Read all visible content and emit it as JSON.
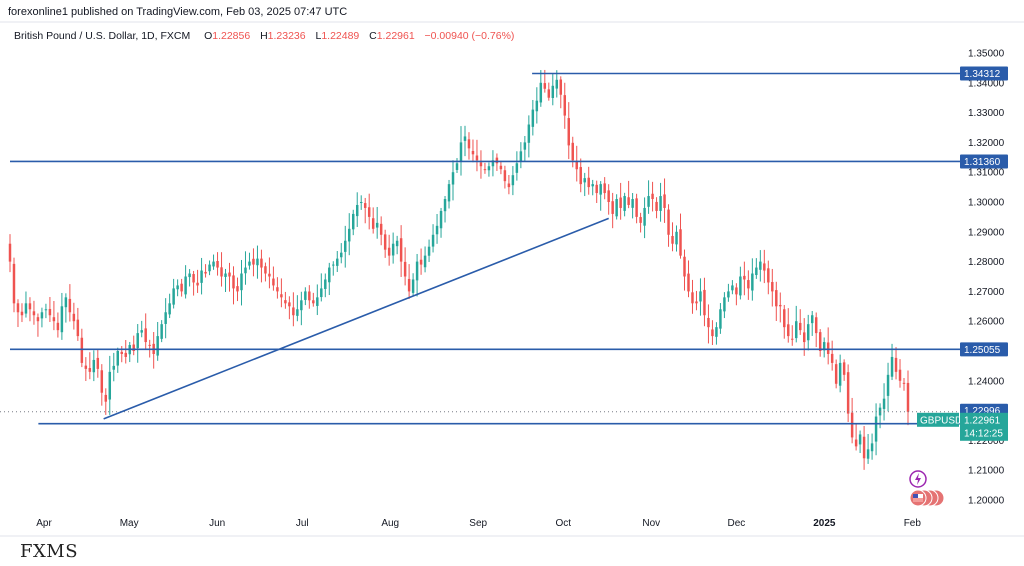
{
  "publisher_line": "forexonline1 published on TradingView.com, Feb 03, 2025 07:47 UTC",
  "symbol_header": {
    "title": "British Pound / U.S. Dollar, 1D, FXCM",
    "open_label": "O",
    "open": "1.22856",
    "high_label": "H",
    "high": "1.23236",
    "low_label": "L",
    "low": "1.22489",
    "close_label": "C",
    "close": "1.22961",
    "change": "−0.00940 (−0.76%)"
  },
  "watermark": "FXMS",
  "colors": {
    "up": "#26a69a",
    "down": "#ef5350",
    "level_line": "#2a5caa",
    "tag_bg": "#2a5caa",
    "last_price_bg": "#26a69a",
    "dotted_price": "#787b86"
  },
  "icons": [
    "lightning-icon",
    "us-flag-icon"
  ],
  "chart_data": {
    "type": "candlestick",
    "symbol": "GBPUSD",
    "interval": "1D",
    "x_ticks": [
      "Apr",
      "May",
      "Jun",
      "Jul",
      "Aug",
      "Sep",
      "Oct",
      "Nov",
      "Dec",
      "2025",
      "Feb"
    ],
    "y_ticks": [
      "1.35000",
      "1.34000",
      "1.33000",
      "1.32000",
      "1.31000",
      "1.30000",
      "1.29000",
      "1.28000",
      "1.27000",
      "1.26000",
      "1.25000",
      "1.24000",
      "1.23000",
      "1.22000",
      "1.21000",
      "1.20000"
    ],
    "ylim": [
      1.195,
      1.353
    ],
    "grid": false,
    "horizontal_levels": [
      {
        "value": 1.34312,
        "label": "1.34312",
        "start": "2024-09-20"
      },
      {
        "value": 1.3136,
        "label": "1.31360",
        "start": "2024-03-20"
      },
      {
        "value": 1.25055,
        "label": "1.25055",
        "start": "2024-03-20"
      },
      {
        "value": 1.22996,
        "label": "1.22996",
        "start": "2024-03-30"
      }
    ],
    "trendline": {
      "from": {
        "date": "2024-04-22",
        "price": 1.2299
      },
      "to": {
        "date": "2024-10-17",
        "price": 1.2945
      }
    },
    "last_price": {
      "symbol": "GBPUSD",
      "value": "1.22961",
      "countdown": "14:12:25"
    },
    "candles_close": [
      1.28,
      1.266,
      1.263,
      1.262,
      1.266,
      1.264,
      1.262,
      1.26,
      1.263,
      1.264,
      1.262,
      1.26,
      1.257,
      1.265,
      1.268,
      1.263,
      1.26,
      1.255,
      1.246,
      1.244,
      1.243,
      1.247,
      1.244,
      1.236,
      1.233,
      1.243,
      1.245,
      1.25,
      1.249,
      1.248,
      1.252,
      1.25,
      1.256,
      1.257,
      1.253,
      1.252,
      1.249,
      1.255,
      1.259,
      1.263,
      1.266,
      1.271,
      1.272,
      1.27,
      1.275,
      1.276,
      1.273,
      1.272,
      1.277,
      1.276,
      1.279,
      1.28,
      1.278,
      1.275,
      1.276,
      1.275,
      1.271,
      1.27,
      1.276,
      1.278,
      1.28,
      1.279,
      1.281,
      1.278,
      1.276,
      1.275,
      1.272,
      1.27,
      1.268,
      1.266,
      1.265,
      1.262,
      1.264,
      1.267,
      1.27,
      1.267,
      1.266,
      1.268,
      1.271,
      1.274,
      1.278,
      1.279,
      1.281,
      1.283,
      1.287,
      1.291,
      1.296,
      1.299,
      1.3,
      1.298,
      1.295,
      1.291,
      1.293,
      1.289,
      1.284,
      1.282,
      1.286,
      1.287,
      1.28,
      1.275,
      1.27,
      1.274,
      1.28,
      1.279,
      1.282,
      1.285,
      1.289,
      1.292,
      1.297,
      1.301,
      1.306,
      1.31,
      1.313,
      1.32,
      1.322,
      1.318,
      1.316,
      1.314,
      1.312,
      1.311,
      1.312,
      1.314,
      1.313,
      1.311,
      1.307,
      1.305,
      1.309,
      1.313,
      1.317,
      1.32,
      1.326,
      1.331,
      1.334,
      1.34,
      1.338,
      1.335,
      1.339,
      1.341,
      1.336,
      1.329,
      1.319,
      1.314,
      1.311,
      1.306,
      1.308,
      1.305,
      1.306,
      1.303,
      1.306,
      1.303,
      1.3,
      1.296,
      1.301,
      1.298,
      1.302,
      1.299,
      1.301,
      1.295,
      1.293,
      1.298,
      1.302,
      1.301,
      1.297,
      1.302,
      1.298,
      1.289,
      1.286,
      1.29,
      1.282,
      1.275,
      1.27,
      1.266,
      1.266,
      1.27,
      1.262,
      1.258,
      1.255,
      1.258,
      1.264,
      1.268,
      1.27,
      1.272,
      1.269,
      1.275,
      1.274,
      1.271,
      1.276,
      1.278,
      1.28,
      1.277,
      1.273,
      1.27,
      1.265,
      1.265,
      1.258,
      1.255,
      1.254,
      1.26,
      1.257,
      1.253,
      1.259,
      1.262,
      1.256,
      1.25,
      1.253,
      1.249,
      1.246,
      1.239,
      1.246,
      1.242,
      1.229,
      1.221,
      1.218,
      1.222,
      1.214,
      1.217,
      1.219,
      1.228,
      1.231,
      1.234,
      1.242,
      1.248,
      1.243,
      1.24,
      1.239,
      1.2296
    ]
  }
}
